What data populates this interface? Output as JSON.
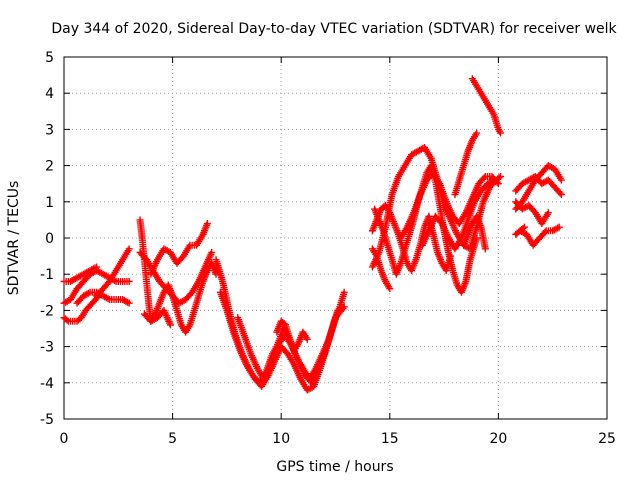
{
  "chart_data": {
    "type": "scatter",
    "title": "Day 344 of 2020, Sidereal Day-to-day VTEC variation (SDTVAR) for receiver welk",
    "xlabel": "GPS time / hours",
    "ylabel": "SDTVAR / TECUs",
    "xlim": [
      0,
      25
    ],
    "ylim": [
      -5,
      5
    ],
    "xticks": [
      "0",
      "5",
      "10",
      "15",
      "20",
      "25"
    ],
    "yticks": [
      "-5",
      "-4",
      "-3",
      "-2",
      "-1",
      "0",
      "1",
      "2",
      "3",
      "4",
      "5"
    ],
    "grid": true,
    "marker": "plus",
    "color": "#ff0000",
    "series": [
      {
        "x": [
          0.0,
          0.3,
          0.6,
          0.9,
          1.2,
          1.5,
          1.8,
          2.1,
          2.4,
          2.7,
          3.0
        ],
        "y": [
          -1.8,
          -1.7,
          -1.4,
          -1.2,
          -1.0,
          -0.9,
          -1.0,
          -1.1,
          -1.2,
          -1.2,
          -1.2
        ]
      },
      {
        "x": [
          0.0,
          0.2,
          0.4,
          0.6,
          0.8,
          1.0,
          1.3,
          1.6
        ],
        "y": [
          -2.2,
          -2.3,
          -2.3,
          -2.3,
          -2.2,
          -2.0,
          -1.8,
          -1.6
        ]
      },
      {
        "x": [
          0.6,
          0.9,
          1.2,
          1.5,
          1.8,
          2.1,
          2.4,
          2.7,
          3.0
        ],
        "y": [
          -1.8,
          -1.6,
          -1.5,
          -1.5,
          -1.6,
          -1.7,
          -1.7,
          -1.7,
          -1.8
        ]
      },
      {
        "x": [
          0.0,
          0.3,
          0.6,
          0.9,
          1.2,
          1.5
        ],
        "y": [
          -1.2,
          -1.2,
          -1.1,
          -1.0,
          -0.9,
          -0.8
        ]
      },
      {
        "x": [
          1.5,
          1.8,
          2.1,
          2.4,
          2.7,
          3.0
        ],
        "y": [
          -1.6,
          -1.4,
          -1.2,
          -0.9,
          -0.6,
          -0.3
        ]
      },
      {
        "x": [
          3.5,
          3.6,
          3.7,
          3.8,
          3.9,
          4.0,
          4.2,
          4.4,
          4.6,
          4.8,
          5.0,
          5.2,
          5.4,
          5.6,
          5.8,
          6.0,
          6.2,
          6.4,
          6.6,
          6.8,
          7.0
        ],
        "y": [
          0.5,
          0.0,
          -0.6,
          -1.2,
          -1.8,
          -2.3,
          -2.1,
          -1.8,
          -1.5,
          -1.3,
          -1.6,
          -2.0,
          -2.4,
          -2.6,
          -2.4,
          -2.0,
          -1.6,
          -1.2,
          -0.9,
          -0.7,
          -1.0
        ]
      },
      {
        "x": [
          3.5,
          3.8,
          4.1,
          4.4,
          4.7,
          5.0,
          5.3,
          5.6,
          5.9,
          6.2,
          6.5,
          6.8
        ],
        "y": [
          -0.4,
          -0.6,
          -0.9,
          -1.2,
          -1.4,
          -1.6,
          -1.8,
          -1.7,
          -1.5,
          -1.2,
          -0.8,
          -0.4
        ]
      },
      {
        "x": [
          4.0,
          4.3,
          4.6,
          4.9,
          5.2,
          5.5,
          5.8,
          6.1,
          6.4,
          6.6
        ],
        "y": [
          -1.0,
          -0.6,
          -0.3,
          -0.4,
          -0.7,
          -0.5,
          -0.2,
          -0.2,
          0.1,
          0.4
        ]
      },
      {
        "x": [
          3.7,
          4.0,
          4.3,
          4.6,
          4.9
        ],
        "y": [
          -2.1,
          -2.3,
          -2.2,
          -2.0,
          -2.4
        ]
      },
      {
        "x": [
          7.0,
          7.3,
          7.6,
          7.9,
          8.2,
          8.5,
          8.8,
          9.1,
          9.4,
          9.7,
          10.0,
          10.3,
          10.6,
          10.9,
          11.2,
          11.5,
          11.8,
          12.1,
          12.4,
          12.7,
          12.9
        ],
        "y": [
          -0.6,
          -1.2,
          -2.0,
          -2.7,
          -3.2,
          -3.6,
          -3.9,
          -4.1,
          -3.8,
          -3.4,
          -3.0,
          -3.2,
          -3.5,
          -3.9,
          -4.2,
          -4.1,
          -3.6,
          -3.0,
          -2.4,
          -1.9,
          -1.5
        ]
      },
      {
        "x": [
          7.2,
          7.5,
          7.8,
          8.1,
          8.4,
          8.7,
          9.0,
          9.3,
          9.6,
          9.9,
          10.2,
          10.5,
          10.8,
          11.1,
          11.4,
          11.7,
          12.0,
          12.3,
          12.6
        ],
        "y": [
          -1.5,
          -2.0,
          -2.6,
          -3.1,
          -3.5,
          -3.8,
          -4.0,
          -3.7,
          -3.2,
          -2.9,
          -2.7,
          -3.0,
          -3.4,
          -3.8,
          -4.0,
          -3.6,
          -3.2,
          -2.6,
          -2.0
        ]
      },
      {
        "x": [
          8.0,
          8.3,
          8.6,
          8.9,
          9.2,
          9.5,
          9.8,
          10.1,
          10.4,
          10.7,
          11.0,
          11.3,
          11.6,
          11.9,
          12.2,
          12.5,
          12.9
        ],
        "y": [
          -2.2,
          -2.7,
          -3.2,
          -3.6,
          -3.9,
          -3.6,
          -3.0,
          -2.5,
          -2.8,
          -3.3,
          -3.6,
          -3.9,
          -3.6,
          -3.2,
          -2.8,
          -2.2,
          -1.9
        ]
      },
      {
        "x": [
          9.8,
          10.0,
          10.2,
          10.4,
          10.6,
          10.8,
          11.0,
          11.2
        ],
        "y": [
          -2.6,
          -2.3,
          -2.4,
          -2.8,
          -3.1,
          -2.9,
          -2.6,
          -2.8
        ]
      },
      {
        "x": [
          14.2,
          14.5,
          14.8,
          15.1,
          15.4,
          15.7,
          16.0,
          16.3,
          16.6,
          16.9,
          17.2,
          17.5,
          17.8,
          18.1,
          18.4,
          18.7,
          19.0,
          19.3,
          19.6,
          19.9,
          20.1
        ],
        "y": [
          -0.8,
          -0.4,
          0.3,
          1.2,
          1.7,
          2.0,
          2.3,
          2.4,
          2.5,
          2.2,
          1.6,
          0.9,
          0.5,
          0.1,
          -0.2,
          -0.3,
          0.3,
          1.0,
          1.4,
          1.6,
          1.7
        ]
      },
      {
        "x": [
          14.3,
          14.5,
          14.7,
          14.9,
          15.1,
          15.3,
          15.5,
          15.7,
          15.9,
          16.1,
          16.3,
          16.5,
          16.7,
          16.9,
          17.1,
          17.3,
          17.5,
          17.7,
          17.9,
          18.1,
          18.3,
          18.5,
          18.7,
          19.0
        ],
        "y": [
          0.8,
          0.5,
          0.2,
          -0.2,
          -0.6,
          -1.0,
          -0.7,
          -0.3,
          0.1,
          0.5,
          1.0,
          1.4,
          1.8,
          2.0,
          1.6,
          0.9,
          0.2,
          -0.4,
          -0.9,
          -1.3,
          -1.5,
          -1.2,
          -0.6,
          0.0
        ]
      },
      {
        "x": [
          14.2,
          14.4,
          14.6,
          14.8,
          15.0,
          15.2,
          15.4,
          15.6,
          15.8,
          16.0,
          16.2,
          16.4,
          16.6,
          16.8,
          17.0,
          17.2,
          17.4,
          17.6,
          17.8
        ],
        "y": [
          0.2,
          0.5,
          0.8,
          0.9,
          0.7,
          0.4,
          0.1,
          -0.3,
          -0.7,
          -0.9,
          -0.6,
          -0.2,
          0.3,
          0.6,
          0.1,
          -0.4,
          -0.7,
          -0.9,
          -0.5
        ]
      },
      {
        "x": [
          14.2,
          14.4,
          14.6,
          14.8,
          15.0
        ],
        "y": [
          -0.3,
          -0.5,
          -0.9,
          -1.2,
          -1.4
        ]
      },
      {
        "x": [
          15.5,
          15.8,
          16.1,
          16.4,
          16.7,
          17.0,
          17.3,
          17.6,
          17.9,
          18.2,
          18.5,
          18.8,
          19.1,
          19.4,
          19.7,
          20.0
        ],
        "y": [
          0.0,
          0.3,
          0.7,
          1.2,
          1.6,
          1.8,
          1.5,
          1.0,
          0.6,
          0.4,
          0.7,
          1.1,
          1.5,
          1.7,
          1.7,
          1.5
        ]
      },
      {
        "x": [
          16.5,
          16.8,
          17.1,
          17.4,
          17.7,
          18.0,
          18.3,
          18.6,
          18.9,
          19.2,
          19.5,
          19.8
        ],
        "y": [
          -0.2,
          0.2,
          0.6,
          0.4,
          0.0,
          -0.3,
          0.0,
          0.5,
          1.0,
          1.3,
          1.5,
          1.6
        ]
      },
      {
        "x": [
          18.0,
          18.2,
          18.4,
          18.6,
          18.8,
          19.0
        ],
        "y": [
          1.2,
          1.6,
          2.0,
          2.4,
          2.7,
          2.9
        ]
      },
      {
        "x": [
          18.8,
          19.0,
          19.2,
          19.4,
          19.6,
          19.8,
          20.0,
          20.1
        ],
        "y": [
          4.4,
          4.2,
          4.0,
          3.8,
          3.6,
          3.4,
          3.0,
          2.9
        ]
      },
      {
        "x": [
          18.4,
          18.6,
          18.8,
          19.0,
          19.2,
          19.4
        ],
        "y": [
          -0.2,
          0.1,
          0.4,
          0.6,
          0.3,
          -0.3
        ]
      },
      {
        "x": [
          20.8,
          21.1,
          21.4,
          21.7,
          22.0,
          22.3,
          22.6,
          22.9
        ],
        "y": [
          0.8,
          1.0,
          1.3,
          1.6,
          1.8,
          2.0,
          1.9,
          1.6
        ]
      },
      {
        "x": [
          20.8,
          21.1,
          21.4,
          21.7,
          22.0,
          22.3,
          22.6,
          22.9
        ],
        "y": [
          1.3,
          1.5,
          1.6,
          1.7,
          1.5,
          1.6,
          1.4,
          1.2
        ]
      },
      {
        "x": [
          20.8,
          21.1,
          21.4,
          21.7,
          22.0,
          22.3
        ],
        "y": [
          1.0,
          0.8,
          0.9,
          0.7,
          0.4,
          0.7
        ]
      },
      {
        "x": [
          21.0,
          21.3,
          21.6,
          21.9,
          22.2,
          22.5,
          22.8
        ],
        "y": [
          0.2,
          0.1,
          -0.2,
          0.0,
          0.2,
          0.2,
          0.3
        ]
      },
      {
        "x": [
          20.8,
          21.0,
          21.2
        ],
        "y": [
          0.1,
          0.2,
          0.3
        ]
      }
    ]
  }
}
